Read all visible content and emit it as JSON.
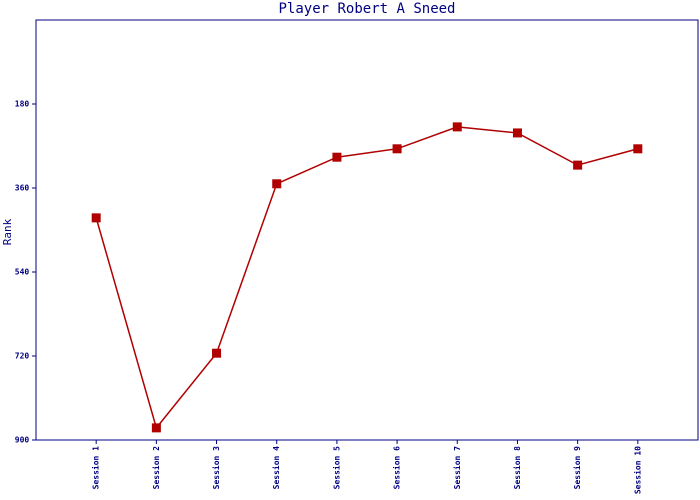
{
  "chart_data": {
    "type": "line",
    "title": "Player Robert A Sneed",
    "y_label": "Rank",
    "categories": [
      "Session 1",
      "Session 2",
      "Session 3",
      "Session 4",
      "Session 5",
      "Session 6",
      "Session 7",
      "Session 8",
      "Session 9",
      "Session 10"
    ],
    "series": [
      {
        "name": "Rank",
        "color": "#b00000",
        "values": [
          424,
          874,
          714,
          351,
          294,
          276,
          229,
          242,
          311,
          276
        ]
      }
    ],
    "ylim": [
      0,
      900
    ],
    "yticks": [
      180,
      360,
      540,
      720,
      900
    ],
    "y_inverted": true,
    "axis_color": "#000080",
    "marker": "square"
  }
}
